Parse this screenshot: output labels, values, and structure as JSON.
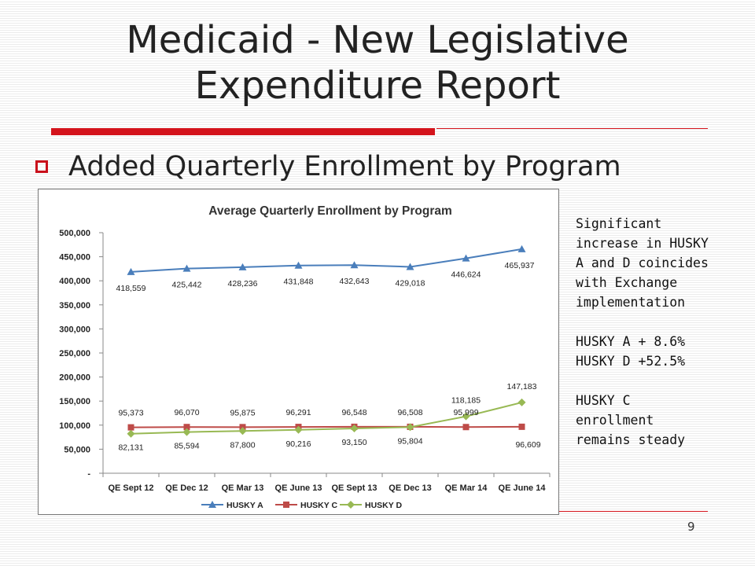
{
  "slide": {
    "title_line1": "Medicaid - New Legislative",
    "title_line2": "Expenditure Report",
    "bullet": "Added Quarterly Enrollment by Program",
    "page_number": "9",
    "accent_color": "#d4141c"
  },
  "notes": {
    "para1": [
      "Significant",
      "increase in HUSKY",
      "A and D coincides",
      "with Exchange",
      "implementation"
    ],
    "para2": [
      "HUSKY A + 8.6%",
      "HUSKY D +52.5%"
    ],
    "para3": [
      "HUSKY C",
      "enrollment",
      "remains steady"
    ]
  },
  "chart_data": {
    "type": "line",
    "title": "Average Quarterly Enrollment by Program",
    "categories": [
      "QE Sept 12",
      "QE Dec 12",
      "QE Mar 13",
      "QE June 13",
      "QE Sept 13",
      "QE Dec 13",
      "QE Mar 14",
      "QE June 14"
    ],
    "y_ticks": [
      "500,000",
      "450,000",
      "400,000",
      "350,000",
      "300,000",
      "250,000",
      "200,000",
      "150,000",
      "100,000",
      "50,000",
      "-"
    ],
    "ylim": [
      0,
      500000
    ],
    "grid": false,
    "legend_position": "bottom",
    "series": [
      {
        "name": "HUSKY A",
        "color": "#4a7ebb",
        "marker": "triangle",
        "values": [
          418559,
          425442,
          428236,
          431848,
          432643,
          429018,
          446624,
          465937
        ],
        "labels": [
          "418,559",
          "425,442",
          "428,236",
          "431,848",
          "432,643",
          "429,018",
          "446,624",
          "465,937"
        ],
        "label_position": "below"
      },
      {
        "name": "HUSKY C",
        "color": "#be4b48",
        "marker": "square",
        "values": [
          95373,
          96070,
          95875,
          96291,
          96548,
          96508,
          95999,
          96609
        ],
        "labels": [
          "95,373",
          "96,070",
          "95,875",
          "96,291",
          "96,548",
          "96,508",
          "95,999",
          "96,609"
        ],
        "label_position": "mixed"
      },
      {
        "name": "HUSKY D",
        "color": "#98b954",
        "marker": "diamond",
        "values": [
          82131,
          85594,
          87800,
          90216,
          93150,
          95804,
          118185,
          147183
        ],
        "labels": [
          "82,131",
          "85,594",
          "87,800",
          "90,216",
          "93,150",
          "95,804",
          "118,185",
          "147,183"
        ],
        "label_position": "mixed"
      }
    ]
  }
}
